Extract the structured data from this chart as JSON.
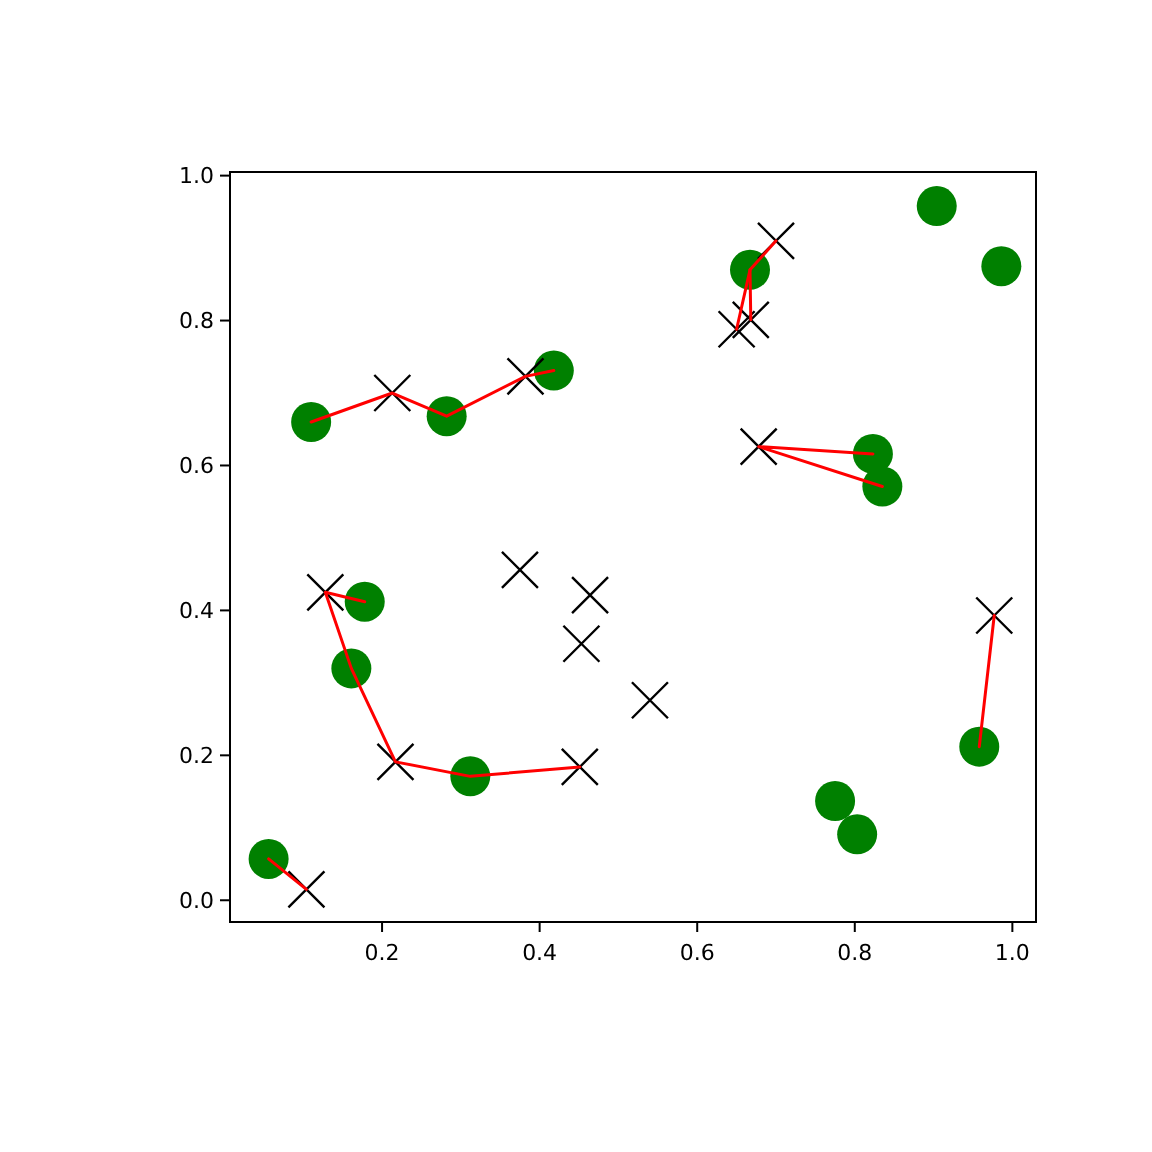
{
  "chart_data": {
    "type": "scatter",
    "xlim": [
      0.007,
      1.03
    ],
    "ylim": [
      -0.03,
      1.005
    ],
    "xticks": [
      0.2,
      0.4,
      0.6,
      0.8,
      {
        "value": 1,
        "label": "1.0"
      }
    ],
    "yticks": [
      {
        "value": 0,
        "label": "0.0"
      },
      0.2,
      0.4,
      0.6,
      0.8,
      {
        "value": 1,
        "label": "1.0"
      }
    ],
    "series": [
      {
        "color": "#008000",
        "marker": "circle",
        "x": [
          0.056,
          0.11,
          0.282,
          0.418,
          0.178,
          0.161,
          0.312,
          0.667,
          0.904,
          0.986,
          0.823,
          0.835,
          0.958,
          0.775,
          0.803
        ],
        "values": [
          0.057,
          0.66,
          0.668,
          0.731,
          0.412,
          0.32,
          0.171,
          0.87,
          0.958,
          0.875,
          0.616,
          0.571,
          0.212,
          0.137,
          0.091
        ]
      },
      {
        "color": "#000000",
        "marker": "cross",
        "x": [
          0.104,
          0.128,
          0.217,
          0.451,
          0.375,
          0.464,
          0.453,
          0.54,
          0.213,
          0.382,
          0.7,
          0.668,
          0.65,
          0.678,
          0.977
        ],
        "values": [
          0.015,
          0.425,
          0.191,
          0.184,
          0.456,
          0.421,
          0.354,
          0.276,
          0.7,
          0.723,
          0.91,
          0.801,
          0.788,
          0.626,
          0.393
        ]
      },
      {
        "type": "line",
        "color": "#ff0000",
        "x": [
          0.056,
          0.104
        ],
        "values": [
          0.057,
          0.015
        ]
      },
      {
        "type": "line",
        "color": "#ff0000",
        "x": [
          0.178,
          0.128,
          0.161,
          0.217,
          0.312,
          0.451
        ],
        "values": [
          0.412,
          0.425,
          0.32,
          0.191,
          0.171,
          0.184
        ]
      },
      {
        "type": "line",
        "color": "#ff0000",
        "x": [
          0.11,
          0.213,
          0.282,
          0.382,
          0.418
        ],
        "values": [
          0.66,
          0.7,
          0.668,
          0.723,
          0.731
        ]
      },
      {
        "type": "line",
        "color": "#ff0000",
        "x": [
          0.7,
          0.667,
          0.668
        ],
        "values": [
          0.91,
          0.87,
          0.801
        ]
      },
      {
        "type": "line",
        "color": "#ff0000",
        "x": [
          0.667,
          0.65
        ],
        "values": [
          0.87,
          0.788
        ]
      },
      {
        "type": "line",
        "color": "#ff0000",
        "x": [
          0.835,
          0.678,
          0.823
        ],
        "values": [
          0.571,
          0.626,
          0.616
        ]
      },
      {
        "type": "line",
        "color": "#ff0000",
        "x": [
          0.958,
          0.977
        ],
        "values": [
          0.212,
          0.393
        ]
      }
    ]
  }
}
